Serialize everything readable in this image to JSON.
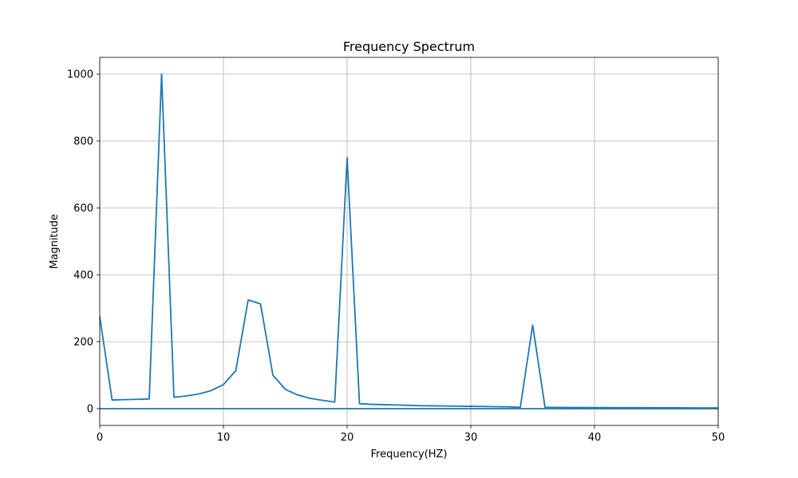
{
  "chart_data": {
    "type": "line",
    "title": "Frequency Spectrum",
    "xlabel": "Frequency(HZ)",
    "ylabel": "Magnitude",
    "xlim": [
      0,
      50
    ],
    "ylim": [
      -50,
      1050
    ],
    "xticks": [
      0,
      10,
      20,
      30,
      40,
      50
    ],
    "yticks": [
      0,
      200,
      400,
      600,
      800,
      1000
    ],
    "grid": true,
    "line_color": "#1f77b4",
    "series": [
      {
        "x": [
          0,
          1,
          2,
          3,
          4,
          5,
          6,
          7,
          8,
          9,
          10,
          11,
          12,
          13,
          14,
          15,
          16,
          17,
          18,
          19,
          20,
          21,
          22,
          23,
          24,
          25,
          26,
          27,
          28,
          29,
          30,
          31,
          32,
          33,
          34,
          35,
          36,
          37,
          38,
          39,
          40,
          41,
          42,
          43,
          44,
          45,
          46,
          47,
          48,
          49,
          50
        ],
        "y": [
          275,
          26,
          27,
          28,
          29,
          1000,
          34,
          38,
          44,
          54,
          72,
          114,
          325,
          313,
          100,
          58,
          41,
          31,
          25,
          20,
          750,
          15,
          13,
          12,
          11,
          10,
          9,
          8.5,
          8,
          7.5,
          7,
          6.5,
          6,
          5.5,
          4,
          250,
          4,
          3.8,
          3.6,
          3.4,
          3.2,
          3.1,
          3,
          2.9,
          2.8,
          2.7,
          2.6,
          2.5,
          2.4,
          2.3,
          2.2
        ]
      },
      {
        "x": [
          0,
          50
        ],
        "y": [
          0,
          0
        ]
      }
    ]
  }
}
